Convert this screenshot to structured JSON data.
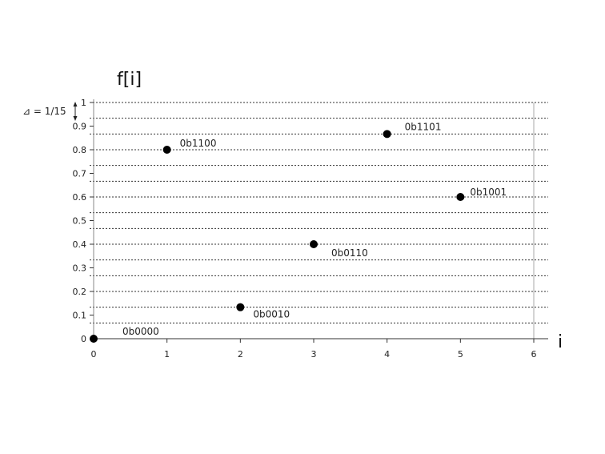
{
  "chart_data": {
    "type": "scatter",
    "title": "",
    "xlabel": "i",
    "ylabel": "f[i]",
    "xlim": [
      0,
      6
    ],
    "ylim": [
      0,
      1
    ],
    "x_ticks": [
      "0",
      "1",
      "2",
      "3",
      "4",
      "5",
      "6"
    ],
    "y_ticks": [
      "0",
      "0.1",
      "0.2",
      "0.3",
      "0.4",
      "0.5",
      "0.6",
      "0.7",
      "0.8",
      "0.9",
      "1"
    ],
    "gridline_step": 0.0666667,
    "grid": "horizontal dotted",
    "step_annotation": "⊿ = 1/15",
    "point_color": "#000000",
    "points": [
      {
        "x": 0,
        "y": 0,
        "label": "0b0000"
      },
      {
        "x": 1,
        "y": 0.8,
        "label": "0b1100"
      },
      {
        "x": 2,
        "y": 0.1333,
        "label": "0b0010"
      },
      {
        "x": 3,
        "y": 0.4,
        "label": "0b0110"
      },
      {
        "x": 4,
        "y": 0.8667,
        "label": "0b1101"
      },
      {
        "x": 5,
        "y": 0.6,
        "label": "0b1001"
      }
    ]
  }
}
